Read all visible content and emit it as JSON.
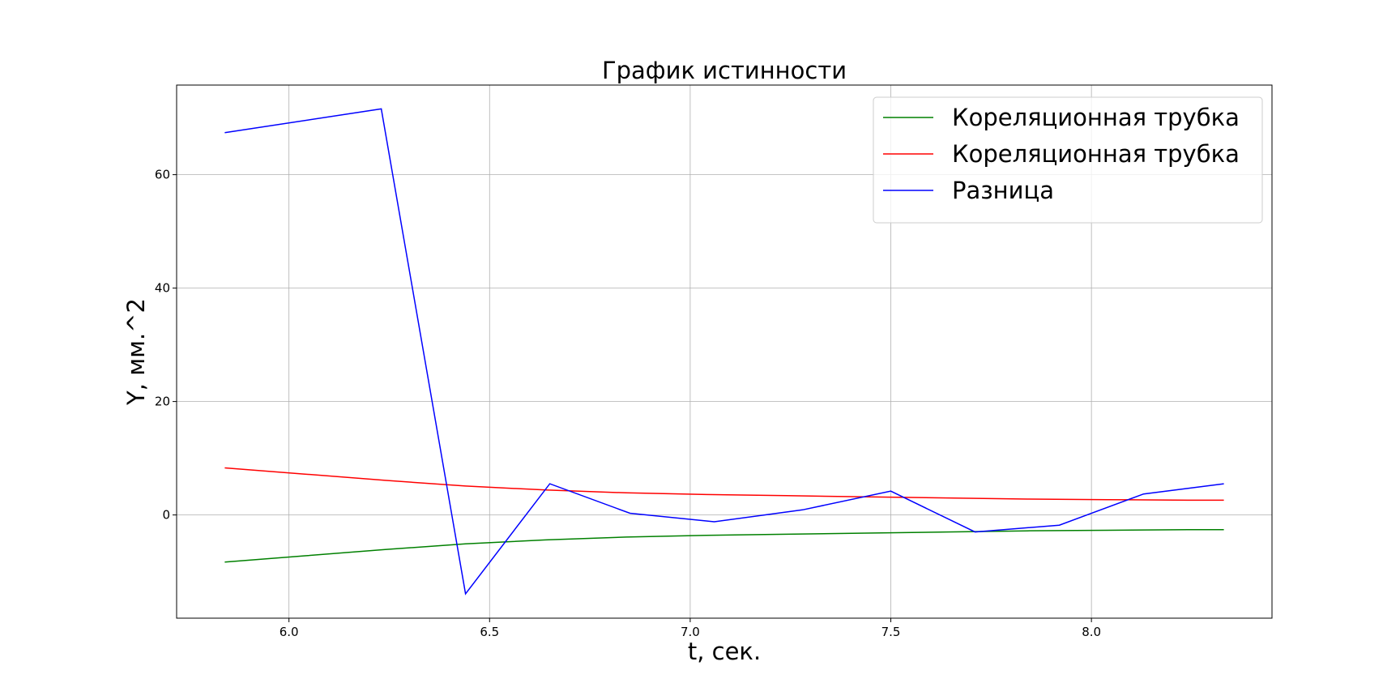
{
  "chart_data": {
    "type": "line",
    "title": "График истинности",
    "xlabel": "t, сек.",
    "ylabel": "Y, мм.^2",
    "xlim": [
      5.72,
      8.45
    ],
    "ylim": [
      -18.2,
      75.8
    ],
    "xticks": [
      6.0,
      6.5,
      7.0,
      7.5,
      8.0
    ],
    "xtick_labels": [
      "6.0",
      "6.5",
      "7.0",
      "7.5",
      "8.0"
    ],
    "yticks": [
      0,
      20,
      40,
      60
    ],
    "ytick_labels": [
      "0",
      "20",
      "40",
      "60"
    ],
    "grid": true,
    "legend_position": "top-right",
    "series": [
      {
        "name": "Кореляционная трубка",
        "color": "#008000",
        "x": [
          5.84,
          6.04,
          6.24,
          6.44,
          6.64,
          6.84,
          7.04,
          7.24,
          7.44,
          7.64,
          7.84,
          8.04,
          8.24,
          8.33
        ],
        "y": [
          -8.3,
          -7.2,
          -6.1,
          -5.1,
          -4.4,
          -3.9,
          -3.6,
          -3.4,
          -3.2,
          -3.0,
          -2.8,
          -2.7,
          -2.6,
          -2.6
        ]
      },
      {
        "name": "Кореляционная трубка",
        "color": "#ff0000",
        "x": [
          5.84,
          6.04,
          6.24,
          6.44,
          6.64,
          6.84,
          7.04,
          7.24,
          7.44,
          7.64,
          7.84,
          8.04,
          8.24,
          8.33
        ],
        "y": [
          8.3,
          7.2,
          6.1,
          5.1,
          4.4,
          3.9,
          3.6,
          3.4,
          3.2,
          3.0,
          2.8,
          2.7,
          2.6,
          2.6
        ]
      },
      {
        "name": "Разница",
        "color": "#0000ff",
        "x": [
          5.84,
          6.23,
          6.44,
          6.65,
          6.85,
          7.06,
          7.28,
          7.5,
          7.71,
          7.92,
          8.13,
          8.33
        ],
        "y": [
          67.4,
          71.6,
          -13.9,
          5.5,
          0.3,
          -1.2,
          0.9,
          4.2,
          -3.0,
          -1.8,
          3.7,
          5.5
        ]
      }
    ]
  }
}
